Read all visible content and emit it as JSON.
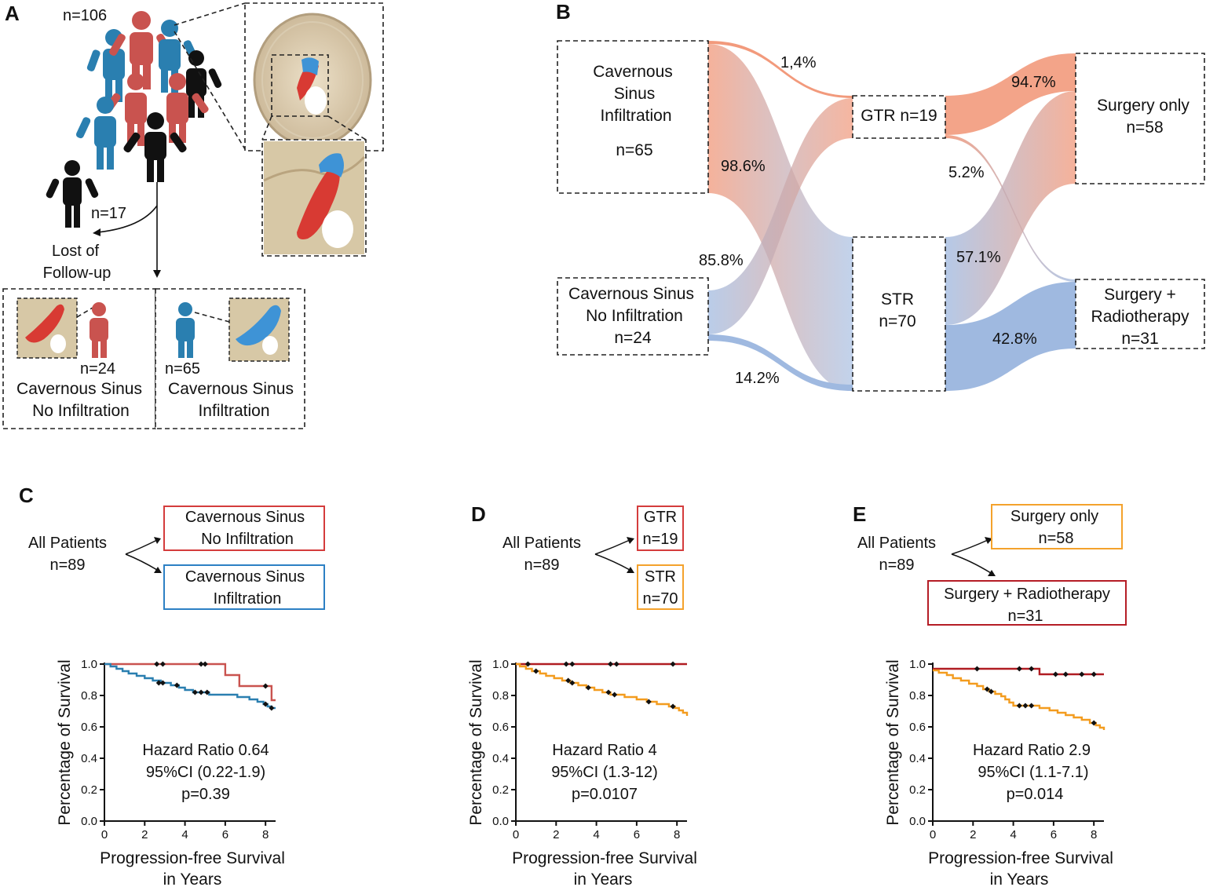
{
  "colors": {
    "red": "#c9534f",
    "blue": "#2a7fb0",
    "black": "#111111",
    "salmon": "#f29a7c",
    "lightblue": "#9fb9e0",
    "darkred": "#b01c22",
    "orange": "#f39c1f",
    "box_red": "#d43c3c",
    "box_blue": "#2d80c4",
    "box_orange": "#f4a22c",
    "box_darkred": "#b51d26"
  },
  "panel_a": {
    "letter": "A",
    "n_total": "n=106",
    "lost_n": "n=17",
    "lost_label_1": "Lost of",
    "lost_label_2": "Follow-up",
    "left_group": {
      "n": "n=24",
      "line1": "Cavernous Sinus",
      "line2": "No Infiltration"
    },
    "right_group": {
      "n": "n=65",
      "line1": "Cavernous Sinus",
      "line2": "Infiltration"
    }
  },
  "panel_b": {
    "letter": "B",
    "nodes": {
      "cs_inf": {
        "lines": [
          "Cavernous",
          "Sinus",
          "Infiltration"
        ],
        "n": "n=65"
      },
      "cs_noinf": {
        "lines": [
          "Cavernous Sinus",
          "No Infiltration",
          "n=24"
        ]
      },
      "gtr": {
        "label": "GTR n=19"
      },
      "str": {
        "lines": [
          "STR",
          "n=70"
        ]
      },
      "surgery_only": {
        "lines": [
          "Surgery only",
          "n=58"
        ]
      },
      "surgery_rt": {
        "lines": [
          "Surgery +",
          "Radiotherapy",
          "n=31"
        ]
      }
    },
    "flows": {
      "inf_to_gtr": "1,4%",
      "inf_to_str": "98.6%",
      "noinf_to_gtr": "85.8%",
      "noinf_to_str": "14.2%",
      "gtr_to_surgery": "94.7%",
      "gtr_to_rt": "5.2%",
      "str_to_surgery": "57.1%",
      "str_to_rt": "42.8%"
    }
  },
  "panel_c": {
    "letter": "C",
    "root": [
      "All Patients",
      "n=89"
    ],
    "box1": [
      "Cavernous Sinus",
      "No Infiltration"
    ],
    "box2": [
      "Cavernous Sinus",
      "Infiltration"
    ],
    "stats": [
      "Hazard Ratio 0.64",
      "95%CI (0.22-1.9)",
      "p=0.39"
    ]
  },
  "panel_d": {
    "letter": "D",
    "root": [
      "All Patients",
      "n=89"
    ],
    "box1": [
      "GTR",
      "n=19"
    ],
    "box2": [
      "STR",
      "n=70"
    ],
    "stats": [
      "Hazard Ratio 4",
      "95%CI (1.3-12)",
      "p=0.0107"
    ]
  },
  "panel_e": {
    "letter": "E",
    "root": [
      "All Patients",
      "n=89"
    ],
    "box1": [
      "Surgery only",
      "n=58"
    ],
    "box2": [
      "Surgery + Radiotherapy",
      "n=31"
    ],
    "stats": [
      "Hazard Ratio 2.9",
      "95%CI (1.1-7.1)",
      "p=0.014"
    ]
  },
  "chart_data": [
    {
      "type": "line",
      "panel": "C",
      "xlabel": "Progression-free Survival in Years",
      "xlabel_lines": [
        "Progression-free Survival",
        "in Years"
      ],
      "ylabel": "Percentage of Survival",
      "xlim": [
        0,
        8.5
      ],
      "ylim": [
        0,
        1
      ],
      "xticks": [
        "0",
        "2",
        "4",
        "6",
        "8"
      ],
      "xtick_values": [
        0,
        2,
        4,
        6,
        8
      ],
      "yticks": [
        "0.0",
        "0.2",
        "0.4",
        "0.6",
        "0.8",
        "1.0"
      ],
      "ytick_values": [
        0,
        0.2,
        0.4,
        0.6,
        0.8,
        1.0
      ],
      "series": [
        {
          "name": "Cavernous Sinus No Infiltration",
          "color": "#c9534f",
          "steps": [
            [
              0,
              1.0
            ],
            [
              6.0,
              0.93
            ],
            [
              6.7,
              0.86
            ],
            [
              8.3,
              0.77
            ],
            [
              8.5,
              0.77
            ]
          ],
          "censored": [
            [
              2.6,
              1.0
            ],
            [
              2.9,
              1.0
            ],
            [
              4.8,
              1.0
            ],
            [
              5.0,
              1.0
            ],
            [
              8.0,
              0.86
            ]
          ]
        },
        {
          "name": "Cavernous Sinus Infiltration",
          "color": "#2a7fb0",
          "steps": [
            [
              0,
              1.0
            ],
            [
              0.3,
              0.985
            ],
            [
              0.6,
              0.97
            ],
            [
              0.9,
              0.955
            ],
            [
              1.2,
              0.94
            ],
            [
              1.6,
              0.925
            ],
            [
              2.0,
              0.91
            ],
            [
              2.4,
              0.895
            ],
            [
              2.8,
              0.88
            ],
            [
              3.3,
              0.865
            ],
            [
              3.7,
              0.85
            ],
            [
              4.0,
              0.835
            ],
            [
              4.4,
              0.82
            ],
            [
              5.2,
              0.805
            ],
            [
              6.6,
              0.79
            ],
            [
              7.2,
              0.775
            ],
            [
              7.6,
              0.76
            ],
            [
              7.9,
              0.745
            ],
            [
              8.1,
              0.73
            ],
            [
              8.3,
              0.72
            ],
            [
              8.5,
              0.72
            ]
          ],
          "censored": [
            [
              2.7,
              0.88
            ],
            [
              2.9,
              0.88
            ],
            [
              3.6,
              0.865
            ],
            [
              4.5,
              0.82
            ],
            [
              4.8,
              0.82
            ],
            [
              5.1,
              0.82
            ],
            [
              8.0,
              0.745
            ],
            [
              8.3,
              0.72
            ]
          ]
        }
      ]
    },
    {
      "type": "line",
      "panel": "D",
      "xlabel": "Progression-free Survival in Years",
      "xlabel_lines": [
        "Progression-free Survival",
        "in Years"
      ],
      "ylabel": "Percentage of Survival",
      "xlim": [
        0,
        8.5
      ],
      "ylim": [
        0,
        1
      ],
      "xticks": [
        "0",
        "2",
        "4",
        "6",
        "8"
      ],
      "xtick_values": [
        0,
        2,
        4,
        6,
        8
      ],
      "yticks": [
        "0.0",
        "0.2",
        "0.4",
        "0.6",
        "0.8",
        "1.0"
      ],
      "ytick_values": [
        0,
        0.2,
        0.4,
        0.6,
        0.8,
        1.0
      ],
      "series": [
        {
          "name": "GTR",
          "color": "#b01c22",
          "steps": [
            [
              0,
              1.0
            ],
            [
              8.5,
              1.0
            ]
          ],
          "censored": [
            [
              0.6,
              1.0
            ],
            [
              2.5,
              1.0
            ],
            [
              2.8,
              1.0
            ],
            [
              4.7,
              1.0
            ],
            [
              5.0,
              1.0
            ],
            [
              7.8,
              1.0
            ]
          ]
        },
        {
          "name": "STR",
          "color": "#f39c1f",
          "steps": [
            [
              0,
              1.0
            ],
            [
              0.2,
              0.985
            ],
            [
              0.5,
              0.97
            ],
            [
              0.8,
              0.955
            ],
            [
              1.2,
              0.94
            ],
            [
              1.5,
              0.925
            ],
            [
              1.9,
              0.91
            ],
            [
              2.3,
              0.895
            ],
            [
              2.7,
              0.88
            ],
            [
              3.1,
              0.865
            ],
            [
              3.5,
              0.85
            ],
            [
              3.9,
              0.835
            ],
            [
              4.3,
              0.82
            ],
            [
              4.7,
              0.805
            ],
            [
              5.4,
              0.79
            ],
            [
              6.0,
              0.775
            ],
            [
              6.5,
              0.76
            ],
            [
              7.0,
              0.745
            ],
            [
              7.6,
              0.73
            ],
            [
              7.9,
              0.72
            ],
            [
              8.1,
              0.705
            ],
            [
              8.3,
              0.69
            ],
            [
              8.5,
              0.67
            ]
          ],
          "censored": [
            [
              1.0,
              0.955
            ],
            [
              2.6,
              0.895
            ],
            [
              2.8,
              0.88
            ],
            [
              3.6,
              0.85
            ],
            [
              4.6,
              0.82
            ],
            [
              4.9,
              0.805
            ],
            [
              6.6,
              0.76
            ],
            [
              7.8,
              0.73
            ]
          ]
        }
      ]
    },
    {
      "type": "line",
      "panel": "E",
      "xlabel": "Progression-free Survival in Years",
      "xlabel_lines": [
        "Progression-free Survival",
        "in Years"
      ],
      "ylabel": "Percentage of Survival",
      "xlim": [
        0,
        8.5
      ],
      "ylim": [
        0,
        1
      ],
      "xticks": [
        "0",
        "2",
        "4",
        "6",
        "8"
      ],
      "xtick_values": [
        0,
        2,
        4,
        6,
        8
      ],
      "yticks": [
        "0.0",
        "0.2",
        "0.4",
        "0.6",
        "0.8",
        "1.0"
      ],
      "ytick_values": [
        0,
        0.2,
        0.4,
        0.6,
        0.8,
        1.0
      ],
      "series": [
        {
          "name": "Surgery + Radiotherapy",
          "color": "#b01c22",
          "steps": [
            [
              0,
              0.97
            ],
            [
              5.3,
              0.935
            ],
            [
              8.5,
              0.935
            ]
          ],
          "censored": [
            [
              2.2,
              0.97
            ],
            [
              4.3,
              0.97
            ],
            [
              4.9,
              0.97
            ],
            [
              6.1,
              0.935
            ],
            [
              6.6,
              0.935
            ],
            [
              7.4,
              0.935
            ],
            [
              8.0,
              0.935
            ]
          ]
        },
        {
          "name": "Surgery only",
          "color": "#f39c1f",
          "steps": [
            [
              0,
              0.96
            ],
            [
              0.3,
              0.945
            ],
            [
              0.7,
              0.93
            ],
            [
              1.0,
              0.91
            ],
            [
              1.4,
              0.895
            ],
            [
              1.8,
              0.875
            ],
            [
              2.2,
              0.86
            ],
            [
              2.5,
              0.84
            ],
            [
              2.8,
              0.825
            ],
            [
              3.1,
              0.81
            ],
            [
              3.4,
              0.795
            ],
            [
              3.6,
              0.775
            ],
            [
              3.8,
              0.755
            ],
            [
              4.0,
              0.735
            ],
            [
              5.3,
              0.72
            ],
            [
              5.8,
              0.705
            ],
            [
              6.2,
              0.69
            ],
            [
              6.6,
              0.675
            ],
            [
              7.0,
              0.66
            ],
            [
              7.4,
              0.645
            ],
            [
              7.8,
              0.625
            ],
            [
              8.1,
              0.61
            ],
            [
              8.3,
              0.595
            ],
            [
              8.5,
              0.58
            ]
          ],
          "censored": [
            [
              2.7,
              0.84
            ],
            [
              2.9,
              0.825
            ],
            [
              4.3,
              0.735
            ],
            [
              4.6,
              0.735
            ],
            [
              4.9,
              0.735
            ],
            [
              8.0,
              0.625
            ]
          ]
        }
      ]
    }
  ]
}
